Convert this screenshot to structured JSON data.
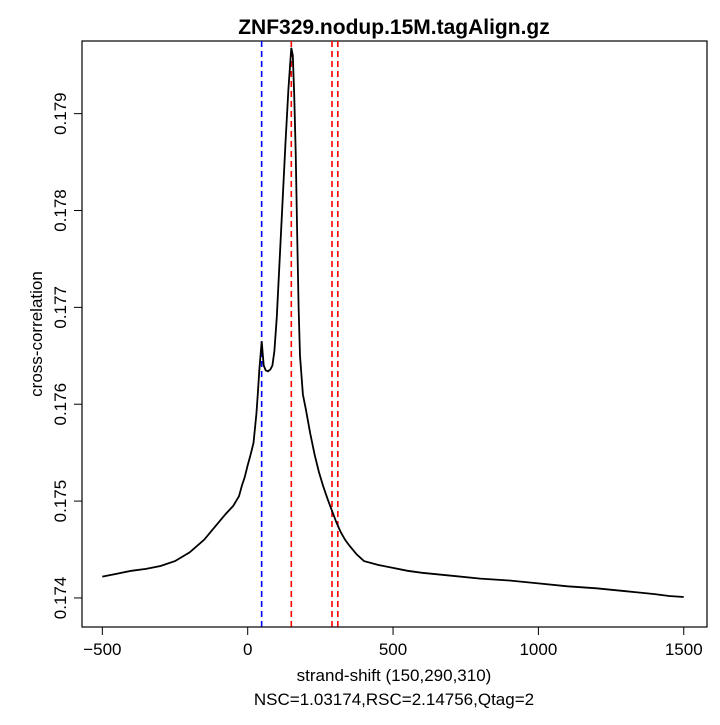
{
  "chart_data": {
    "type": "line",
    "title": "ZNF329.nodup.15M.tagAlign.gz",
    "xlabel": "strand-shift (150,290,310)",
    "subtitle": "NSC=1.03174,RSC=2.14756,Qtag=2",
    "ylabel": "cross-correlation",
    "xlim": [
      -570,
      1580
    ],
    "ylim": [
      0.1737,
      0.17975
    ],
    "xticks": [
      -500,
      0,
      500,
      1000,
      1500
    ],
    "xtick_labels": [
      "−500",
      "0",
      "500",
      "1000",
      "1500"
    ],
    "yticks": [
      0.174,
      0.175,
      0.176,
      0.177,
      0.178,
      0.179
    ],
    "ytick_labels": [
      "0.174",
      "0.175",
      "0.176",
      "0.177",
      "0.178",
      "0.179"
    ],
    "grid": false,
    "vlines": [
      {
        "x": 48,
        "color": "#0000ff",
        "style": "dashed"
      },
      {
        "x": 150,
        "color": "#ff0000",
        "style": "dashed"
      },
      {
        "x": 290,
        "color": "#ff0000",
        "style": "dashed"
      },
      {
        "x": 310,
        "color": "#ff0000",
        "style": "dashed"
      }
    ],
    "series": [
      {
        "name": "cross-correlation",
        "color": "#000000",
        "x": [
          -500,
          -450,
          -400,
          -350,
          -300,
          -250,
          -200,
          -150,
          -100,
          -75,
          -50,
          -30,
          -20,
          -10,
          0,
          10,
          20,
          30,
          35,
          40,
          48,
          55,
          62,
          70,
          78,
          85,
          92,
          100,
          110,
          120,
          130,
          140,
          150,
          155,
          160,
          165,
          170,
          175,
          180,
          190,
          200,
          215,
          230,
          245,
          260,
          275,
          290,
          305,
          320,
          335,
          350,
          375,
          400,
          450,
          500,
          550,
          600,
          700,
          800,
          900,
          1000,
          1100,
          1200,
          1300,
          1400,
          1450,
          1500
        ],
        "y": [
          0.17422,
          0.17425,
          0.17428,
          0.1743,
          0.17433,
          0.17438,
          0.17447,
          0.1746,
          0.17478,
          0.17487,
          0.17495,
          0.17505,
          0.17516,
          0.17525,
          0.17537,
          0.17548,
          0.1756,
          0.1759,
          0.17612,
          0.17635,
          0.17665,
          0.1764,
          0.17635,
          0.17634,
          0.17636,
          0.1764,
          0.17655,
          0.1769,
          0.1775,
          0.1781,
          0.1787,
          0.17925,
          0.17968,
          0.1796,
          0.1792,
          0.1786,
          0.1778,
          0.177,
          0.1765,
          0.1761,
          0.17595,
          0.1757,
          0.17548,
          0.1753,
          0.17515,
          0.17502,
          0.1749,
          0.17478,
          0.17468,
          0.1746,
          0.17454,
          0.17445,
          0.17438,
          0.17434,
          0.17431,
          0.17428,
          0.17426,
          0.17423,
          0.1742,
          0.17418,
          0.17415,
          0.17412,
          0.1741,
          0.17407,
          0.17404,
          0.17402,
          0.17401
        ]
      }
    ]
  }
}
